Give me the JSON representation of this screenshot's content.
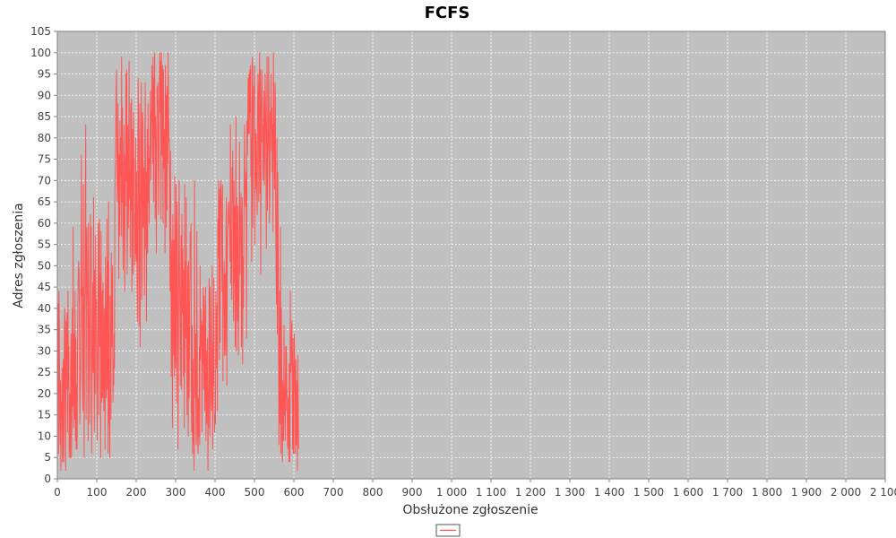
{
  "chart_data": {
    "type": "line",
    "title": "FCFS",
    "xlabel": "Obsłużone zgłoszenie",
    "ylabel": "Adres zgłoszenia",
    "xlim": [
      0,
      2100
    ],
    "ylim": [
      0,
      105
    ],
    "x_ticks": [
      0,
      100,
      200,
      300,
      400,
      500,
      600,
      700,
      800,
      900,
      1000,
      1100,
      1200,
      1300,
      1400,
      1500,
      1600,
      1700,
      1800,
      1900,
      2000,
      2100
    ],
    "x_tick_labels": [
      "0",
      "100",
      "200",
      "300",
      "400",
      "500",
      "600",
      "700",
      "800",
      "900",
      "1 000",
      "1 100",
      "1 200",
      "1 300",
      "1 400",
      "1 500",
      "1 600",
      "1 700",
      "1 800",
      "1 900",
      "2 000",
      "2 100"
    ],
    "y_ticks": [
      0,
      5,
      10,
      15,
      20,
      25,
      30,
      35,
      40,
      45,
      50,
      55,
      60,
      65,
      70,
      75,
      80,
      85,
      90,
      95,
      100,
      105
    ],
    "y_tick_labels": [
      "0",
      "5",
      "10",
      "15",
      "20",
      "25",
      "30",
      "35",
      "40",
      "45",
      "50",
      "55",
      "60",
      "65",
      "70",
      "75",
      "80",
      "85",
      "90",
      "95",
      "100",
      "105"
    ],
    "grid": true,
    "legend_position": "bottom-center",
    "colors": {
      "plot_background": "#c0c0c0",
      "series": "#ff5555",
      "grid": "#ffffff"
    },
    "series": [
      {
        "name": "",
        "x_start": 1,
        "x_step": 1,
        "values": [
          32,
          41,
          6,
          44,
          36,
          14,
          8,
          23,
          2,
          18,
          14,
          26,
          4,
          9,
          28,
          4,
          20,
          37,
          40,
          12,
          2,
          37,
          21,
          36,
          39,
          11,
          44,
          21,
          31,
          5,
          9,
          20,
          5,
          28,
          34,
          5,
          16,
          40,
          17,
          59,
          12,
          34,
          33,
          14,
          44,
          9,
          33,
          7,
          22,
          7,
          27,
          41,
          47,
          51,
          49,
          39,
          13,
          21,
          24,
          49,
          76,
          43,
          45,
          22,
          16,
          69,
          40,
          5,
          39,
          44,
          69,
          83,
          14,
          52,
          59,
          46,
          39,
          9,
          60,
          43,
          34,
          13,
          26,
          62,
          50,
          59,
          6,
          24,
          34,
          46,
          25,
          66,
          30,
          11,
          49,
          20,
          57,
          40,
          42,
          21,
          9,
          31,
          38,
          60,
          15,
          56,
          61,
          31,
          48,
          5,
          58,
          18,
          20,
          44,
          19,
          46,
          26,
          16,
          40,
          30,
          7,
          52,
          42,
          19,
          25,
          61,
          21,
          51,
          6,
          65,
          13,
          19,
          5,
          43,
          38,
          14,
          53,
          39,
          31,
          50,
          18,
          24,
          22,
          34,
          26,
          68,
          74,
          79,
          91,
          96,
          77,
          65,
          70,
          88,
          72,
          47,
          76,
          57,
          84,
          71,
          80,
          57,
          99,
          65,
          87,
          61,
          49,
          72,
          83,
          57,
          44,
          76,
          64,
          95,
          70,
          96,
          48,
          58,
          83,
          59,
          68,
          98,
          66,
          72,
          52,
          88,
          63,
          89,
          44,
          62,
          82,
          48,
          86,
          73,
          75,
          50,
          62,
          53,
          80,
          51,
          72,
          46,
          37,
          68,
          94,
          79,
          36,
          63,
          88,
          31,
          67,
          65,
          93,
          42,
          47,
          86,
          84,
          59,
          66,
          73,
          43,
          80,
          93,
          54,
          72,
          37,
          59,
          82,
          53,
          88,
          65,
          75,
          60,
          78,
          74,
          91,
          70,
          86,
          84,
          97,
          80,
          74,
          99,
          65,
          94,
          80,
          100,
          61,
          85,
          81,
          53,
          73,
          92,
          88,
          93,
          76,
          62,
          75,
          95,
          100,
          86,
          98,
          61,
          100,
          76,
          94,
          97,
          60,
          96,
          73,
          78,
          82,
          53,
          97,
          86,
          59,
          90,
          63,
          92,
          74,
          100,
          88,
          79,
          80,
          60,
          44,
          77,
          54,
          24,
          50,
          56,
          12,
          62,
          40,
          29,
          56,
          24,
          71,
          29,
          26,
          69,
          18,
          49,
          65,
          45,
          7,
          29,
          53,
          70,
          46,
          40,
          22,
          46,
          57,
          21,
          62,
          39,
          54,
          45,
          24,
          49,
          12,
          69,
          25,
          51,
          33,
          66,
          41,
          15,
          31,
          50,
          10,
          51,
          19,
          28,
          44,
          58,
          52,
          60,
          17,
          11,
          36,
          6,
          28,
          9,
          8,
          2,
          70,
          24,
          19,
          34,
          8,
          11,
          58,
          26,
          9,
          6,
          19,
          10,
          31,
          8,
          50,
          28,
          40,
          31,
          37,
          11,
          36,
          27,
          45,
          21,
          43,
          39,
          16,
          27,
          45,
          9,
          30,
          13,
          26,
          33,
          2,
          21,
          12,
          47,
          40,
          10,
          45,
          36,
          21,
          16,
          22,
          50,
          7,
          32,
          22,
          47,
          17,
          11,
          15,
          13,
          44,
          26,
          33,
          41,
          16,
          61,
          52,
          70,
          58,
          28,
          68,
          32,
          67,
          70,
          66,
          58,
          44,
          69,
          23,
          45,
          45,
          51,
          29,
          48,
          42,
          29,
          61,
          66,
          22,
          50,
          59,
          59,
          64,
          65,
          60,
          60,
          51,
          83,
          46,
          58,
          42,
          73,
          65,
          77,
          43,
          37,
          70,
          46,
          64,
          31,
          56,
          85,
          30,
          66,
          53,
          37,
          64,
          29,
          40,
          46,
          79,
          48,
          57,
          63,
          67,
          31,
          57,
          66,
          27,
          52,
          40,
          56,
          68,
          83,
          70,
          64,
          65,
          72,
          33,
          84,
          76,
          83,
          94,
          81,
          95,
          81,
          96,
          86,
          97,
          71,
          80,
          51,
          97,
          99,
          59,
          82,
          92,
          89,
          97,
          55,
          82,
          68,
          81,
          76,
          67,
          62,
          88,
          95,
          89,
          65,
          92,
          100,
          67,
          96,
          48,
          86,
          90,
          96,
          79,
          83,
          70,
          83,
          91,
          69,
          75,
          95,
          89,
          80,
          54,
          82,
          99,
          63,
          75,
          80,
          99,
          86,
          60,
          67,
          86,
          82,
          95,
          77,
          87,
          72,
          83,
          58,
          100,
          86,
          75,
          68,
          93,
          90,
          61,
          49,
          41,
          80,
          34,
          72,
          57,
          38,
          8,
          26,
          44,
          13,
          59,
          6,
          40,
          31,
          7,
          4,
          23,
          9,
          9,
          36,
          15,
          21,
          9,
          31,
          16,
          31,
          23,
          17,
          8,
          7,
          19,
          4,
          27,
          21,
          4,
          44,
          25,
          27,
          34,
          37,
          21,
          7,
          33,
          6,
          6,
          34,
          28,
          25,
          6,
          28,
          8,
          23,
          15,
          2,
          29,
          17,
          7
        ]
      }
    ]
  }
}
